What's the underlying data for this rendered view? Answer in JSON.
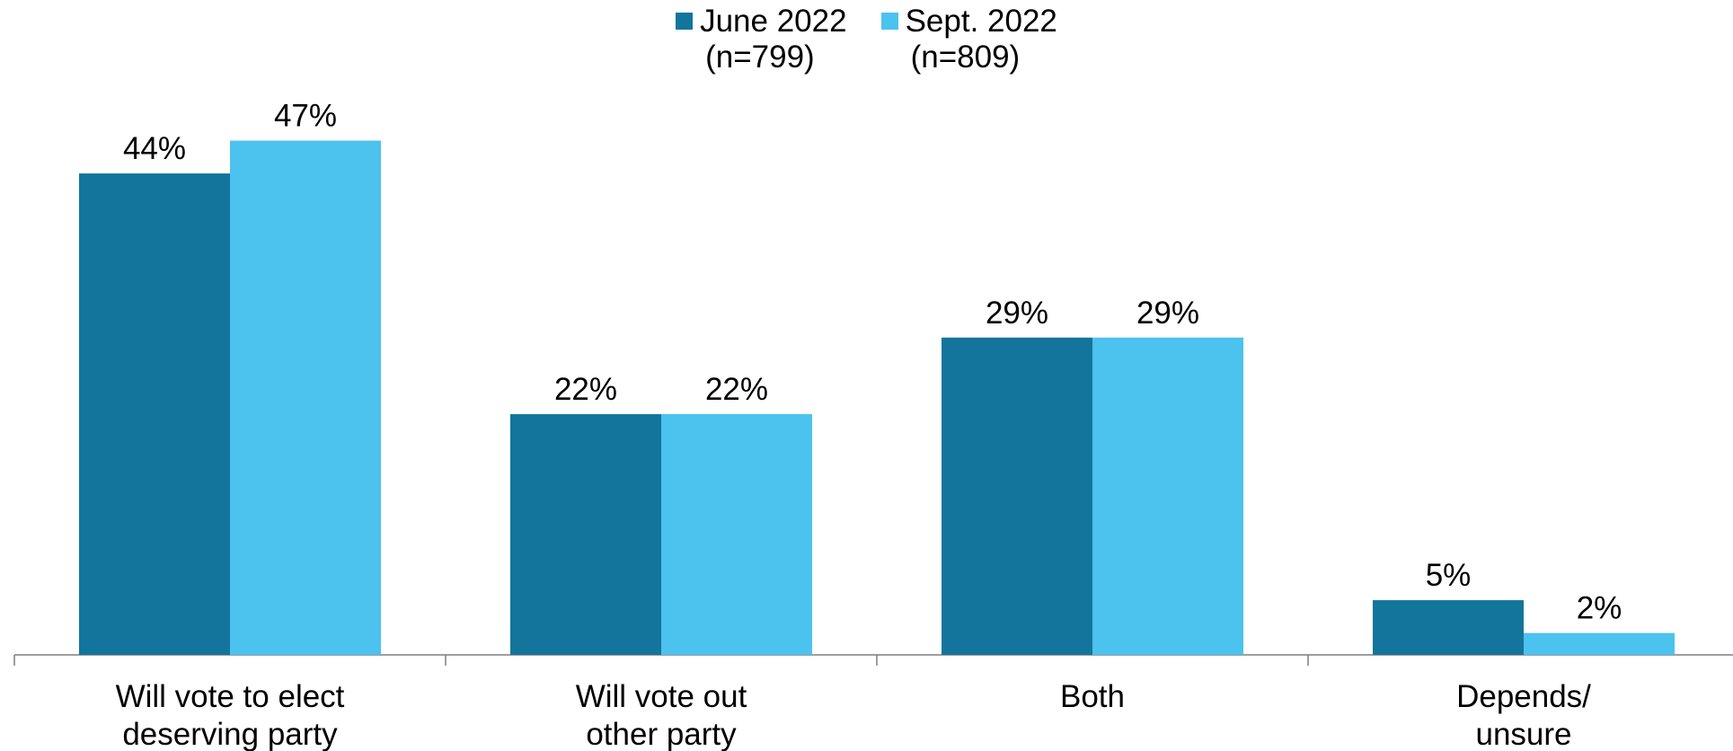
{
  "chart_data": {
    "type": "bar",
    "title": "",
    "xlabel": "",
    "ylabel": "",
    "ylim": [
      0,
      50
    ],
    "grid": false,
    "legend_position": "top-center",
    "categories": [
      [
        "Will vote to elect",
        "deserving party"
      ],
      [
        "Will vote out",
        "other party"
      ],
      [
        "Both"
      ],
      [
        "Depends/",
        "unsure"
      ]
    ],
    "series": [
      {
        "name": "June 2022",
        "n_label": "(n=799)",
        "color": "#13759C",
        "values": [
          44,
          22,
          29,
          5
        ],
        "labels": [
          "44%",
          "22%",
          "29%",
          "5%"
        ]
      },
      {
        "name": "Sept. 2022",
        "n_label": "(n=809)",
        "color": "#4CC2EF",
        "values": [
          47,
          22,
          29,
          2
        ],
        "labels": [
          "47%",
          "22%",
          "29%",
          "2%"
        ]
      }
    ]
  }
}
